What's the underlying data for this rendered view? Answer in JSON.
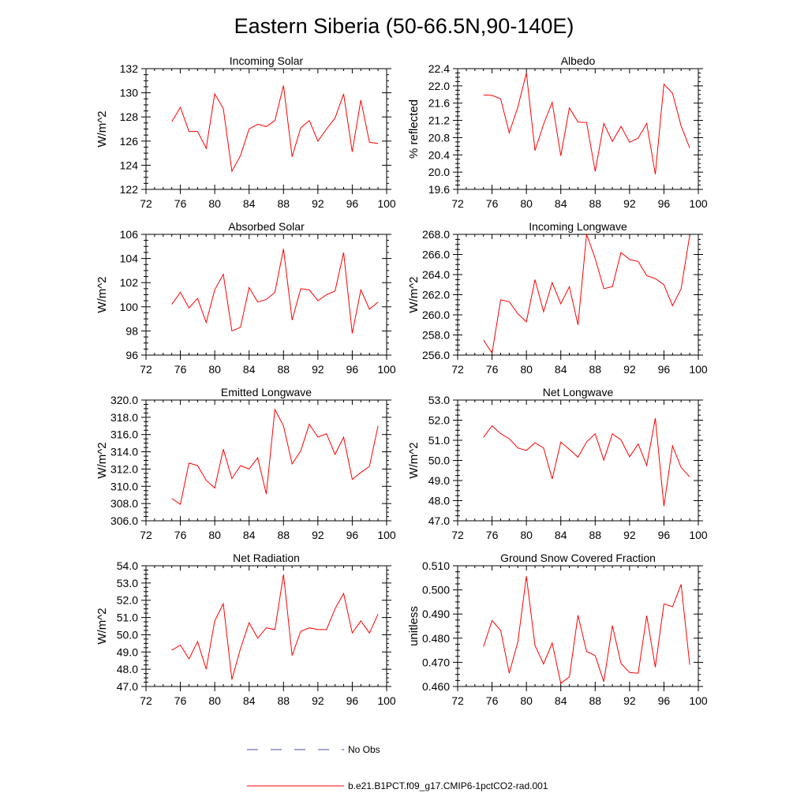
{
  "title": "Eastern Siberia (50-66.5N,90-140E)",
  "legend": {
    "obs_label": "No Obs",
    "model_label": "b.e21.B1PCT.f09_g17.CMIP6-1pctCO2-rad.001",
    "obs_color": "#4a4ab0",
    "model_color": "#ff0000"
  },
  "chart_data": [
    {
      "type": "line",
      "title": "Incoming Solar",
      "ylabel": "W/m^2",
      "xlim": [
        72,
        100
      ],
      "ylim": [
        122,
        132
      ],
      "xticks": [
        "72",
        "76",
        "80",
        "84",
        "88",
        "92",
        "96",
        "100"
      ],
      "yticks": [
        "122",
        "124",
        "126",
        "128",
        "130",
        "132"
      ],
      "series": [
        {
          "x": [
            75,
            76,
            77,
            78,
            79,
            80,
            81,
            82,
            83,
            84,
            85,
            86,
            87,
            88,
            89,
            90,
            91,
            92,
            93,
            94,
            95,
            96,
            97,
            98,
            99
          ],
          "values": [
            127.6,
            128.8,
            126.8,
            126.8,
            125.4,
            129.9,
            128.7,
            123.5,
            124.8,
            127.0,
            127.4,
            127.2,
            127.7,
            130.6,
            124.7,
            127.1,
            127.7,
            126.0,
            127.0,
            127.9,
            129.9,
            125.1,
            129.4,
            125.9,
            125.8
          ]
        }
      ]
    },
    {
      "type": "line",
      "title": "Albedo",
      "ylabel": "% reflected",
      "xlim": [
        72,
        100
      ],
      "ylim": [
        19.6,
        22.4
      ],
      "xticks": [
        "72",
        "76",
        "80",
        "84",
        "88",
        "92",
        "96",
        "100"
      ],
      "yticks": [
        "19.6",
        "20.0",
        "20.4",
        "20.8",
        "21.2",
        "21.6",
        "22.0",
        "22.4"
      ],
      "series": [
        {
          "x": [
            75,
            76,
            77,
            78,
            79,
            80,
            81,
            82,
            83,
            84,
            85,
            86,
            87,
            88,
            89,
            90,
            91,
            92,
            93,
            94,
            95,
            96,
            97,
            98,
            99
          ],
          "values": [
            21.79,
            21.78,
            21.7,
            20.91,
            21.51,
            22.3,
            20.5,
            21.11,
            21.62,
            20.38,
            21.49,
            21.16,
            21.15,
            20.02,
            21.13,
            20.71,
            21.06,
            20.69,
            20.79,
            21.13,
            19.95,
            22.04,
            21.83,
            21.07,
            20.56
          ]
        }
      ]
    },
    {
      "type": "line",
      "title": "Absorbed Solar",
      "ylabel": "W/m^2",
      "xlim": [
        72,
        100
      ],
      "ylim": [
        96,
        106
      ],
      "xticks": [
        "72",
        "76",
        "80",
        "84",
        "88",
        "92",
        "96",
        "100"
      ],
      "yticks": [
        "96",
        "98",
        "100",
        "102",
        "104",
        "106"
      ],
      "series": [
        {
          "x": [
            75,
            76,
            77,
            78,
            79,
            80,
            81,
            82,
            83,
            84,
            85,
            86,
            87,
            88,
            89,
            90,
            91,
            92,
            93,
            94,
            95,
            96,
            97,
            98,
            99
          ],
          "values": [
            100.2,
            101.2,
            99.9,
            100.7,
            98.7,
            101.4,
            102.7,
            98.0,
            98.3,
            101.6,
            100.4,
            100.6,
            101.2,
            104.8,
            98.9,
            101.5,
            101.4,
            100.5,
            101.0,
            101.3,
            104.5,
            97.8,
            101.4,
            99.8,
            100.4
          ]
        }
      ]
    },
    {
      "type": "line",
      "title": "Incoming Longwave",
      "ylabel": "W/m^2",
      "xlim": [
        72,
        100
      ],
      "ylim": [
        256.0,
        268.0
      ],
      "xticks": [
        "72",
        "76",
        "80",
        "84",
        "88",
        "92",
        "96",
        "100"
      ],
      "yticks": [
        "256.0",
        "258.0",
        "260.0",
        "262.0",
        "264.0",
        "266.0",
        "268.0"
      ],
      "series": [
        {
          "x": [
            75,
            76,
            77,
            78,
            79,
            80,
            81,
            82,
            83,
            84,
            85,
            86,
            87,
            88,
            89,
            90,
            91,
            92,
            93,
            94,
            95,
            96,
            97,
            98,
            99
          ],
          "values": [
            257.5,
            256.2,
            261.5,
            261.3,
            260.1,
            259.3,
            263.5,
            260.3,
            263.2,
            261.1,
            262.8,
            259.0,
            268.0,
            265.6,
            262.6,
            262.8,
            266.2,
            265.5,
            265.3,
            263.9,
            263.6,
            263.0,
            260.9,
            262.6,
            267.9
          ]
        }
      ]
    },
    {
      "type": "line",
      "title": "Emitted Longwave",
      "ylabel": "W/m^2",
      "xlim": [
        72,
        100
      ],
      "ylim": [
        306.0,
        320.0
      ],
      "xticks": [
        "72",
        "76",
        "80",
        "84",
        "88",
        "92",
        "96",
        "100"
      ],
      "yticks": [
        "306.0",
        "308.0",
        "310.0",
        "312.0",
        "314.0",
        "316.0",
        "318.0",
        "320.0"
      ],
      "series": [
        {
          "x": [
            75,
            76,
            77,
            78,
            79,
            80,
            81,
            82,
            83,
            84,
            85,
            86,
            87,
            88,
            89,
            90,
            91,
            92,
            93,
            94,
            95,
            96,
            97,
            98,
            99
          ],
          "values": [
            308.6,
            307.9,
            312.7,
            312.4,
            310.7,
            309.8,
            314.3,
            310.9,
            312.4,
            312.0,
            313.3,
            309.1,
            318.9,
            317.0,
            312.6,
            314.1,
            317.2,
            315.7,
            316.1,
            313.7,
            315.7,
            310.8,
            311.6,
            312.3,
            317.0
          ]
        }
      ]
    },
    {
      "type": "line",
      "title": "Net Longwave",
      "ylabel": "W/m^2",
      "xlim": [
        72,
        100
      ],
      "ylim": [
        47.0,
        53.0
      ],
      "xticks": [
        "72",
        "76",
        "80",
        "84",
        "88",
        "92",
        "96",
        "100"
      ],
      "yticks": [
        "47.0",
        "48.0",
        "49.0",
        "50.0",
        "51.0",
        "52.0",
        "53.0"
      ],
      "series": [
        {
          "x": [
            75,
            76,
            77,
            78,
            79,
            80,
            81,
            82,
            83,
            84,
            85,
            86,
            87,
            88,
            89,
            90,
            91,
            92,
            93,
            94,
            95,
            96,
            97,
            98,
            99
          ],
          "values": [
            51.15,
            51.72,
            51.33,
            51.08,
            50.62,
            50.5,
            50.88,
            50.62,
            49.08,
            50.91,
            50.55,
            50.16,
            50.92,
            51.32,
            50.02,
            51.32,
            51.02,
            50.18,
            50.82,
            49.75,
            52.1,
            47.72,
            50.72,
            49.65,
            49.18
          ]
        }
      ]
    },
    {
      "type": "line",
      "title": "Net Radiation",
      "ylabel": "W/m^2",
      "xlim": [
        72,
        100
      ],
      "ylim": [
        47.0,
        54.0
      ],
      "xticks": [
        "72",
        "76",
        "80",
        "84",
        "88",
        "92",
        "96",
        "100"
      ],
      "yticks": [
        "47.0",
        "48.0",
        "49.0",
        "50.0",
        "51.0",
        "52.0",
        "53.0",
        "54.0"
      ],
      "series": [
        {
          "x": [
            75,
            76,
            77,
            78,
            79,
            80,
            81,
            82,
            83,
            84,
            85,
            86,
            87,
            88,
            89,
            90,
            91,
            92,
            93,
            94,
            95,
            96,
            97,
            98,
            99
          ],
          "values": [
            49.1,
            49.4,
            48.6,
            49.6,
            48.0,
            50.8,
            51.8,
            47.4,
            49.2,
            50.7,
            49.8,
            50.4,
            50.3,
            53.5,
            48.8,
            50.2,
            50.4,
            50.3,
            50.3,
            51.5,
            52.4,
            50.1,
            50.8,
            50.1,
            51.2
          ]
        }
      ]
    },
    {
      "type": "line",
      "title": "Ground Snow Covered Fraction",
      "ylabel": "unitless",
      "xlim": [
        72,
        100
      ],
      "ylim": [
        0.46,
        0.51
      ],
      "xticks": [
        "72",
        "76",
        "80",
        "84",
        "88",
        "92",
        "96",
        "100"
      ],
      "yticks": [
        "0.460",
        "0.470",
        "0.480",
        "0.490",
        "0.500",
        "0.510"
      ],
      "series": [
        {
          "x": [
            75,
            76,
            77,
            78,
            79,
            80,
            81,
            82,
            83,
            84,
            85,
            86,
            87,
            88,
            89,
            90,
            91,
            92,
            93,
            94,
            95,
            96,
            97,
            98,
            99
          ],
          "values": [
            0.4765,
            0.4873,
            0.4832,
            0.4655,
            0.4785,
            0.5057,
            0.477,
            0.4693,
            0.478,
            0.4613,
            0.464,
            0.4895,
            0.4745,
            0.4728,
            0.462,
            0.4852,
            0.4695,
            0.4658,
            0.4655,
            0.4893,
            0.468,
            0.4942,
            0.493,
            0.5023,
            0.469
          ]
        }
      ]
    }
  ]
}
